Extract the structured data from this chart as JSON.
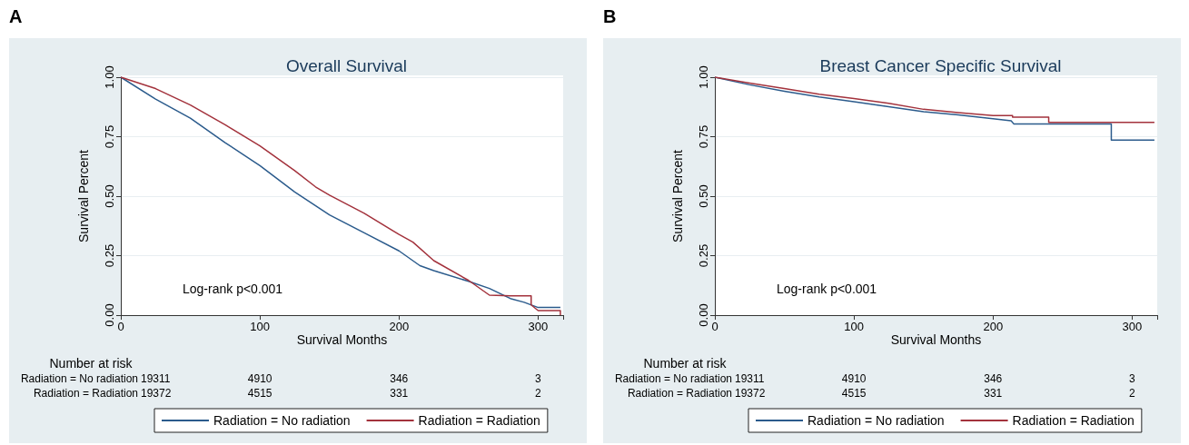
{
  "chart_data": [
    {
      "type": "line",
      "title": "Overall Survival",
      "xlabel": "Survival Months",
      "ylabel": "Survival Percent",
      "annotations": [
        "A",
        "Log-rank p<0.001",
        "Number at risk",
        "Radiation = No radiation",
        "19311",
        "4910",
        "346",
        "3",
        "Radiation = Radiation",
        "19372",
        "4515",
        "331",
        "2"
      ],
      "series": [
        {
          "name": "Radiation = No radiation",
          "color": "#2b5b8c",
          "x": [
            0,
            25,
            50,
            75,
            100,
            125,
            150,
            175,
            200,
            215,
            225,
            250,
            265,
            280,
            290,
            300,
            316
          ],
          "values": [
            1.0,
            0.908,
            0.828,
            0.725,
            0.628,
            0.518,
            0.421,
            0.346,
            0.27,
            0.208,
            0.187,
            0.142,
            0.112,
            0.07,
            0.054,
            0.032,
            0.032
          ]
        },
        {
          "name": "Radiation = Radiation",
          "color": "#a3323c",
          "x": [
            0,
            25,
            50,
            75,
            100,
            125,
            140,
            150,
            175,
            200,
            210,
            225,
            250,
            265,
            280,
            295,
            295,
            300,
            316,
            316
          ],
          "values": [
            1.0,
            0.952,
            0.883,
            0.8,
            0.711,
            0.607,
            0.539,
            0.504,
            0.428,
            0.339,
            0.307,
            0.229,
            0.146,
            0.084,
            0.081,
            0.081,
            0.043,
            0.019,
            0.019,
            0.0
          ]
        }
      ],
      "xlim": [
        0,
        318
      ],
      "xticks": [
        0,
        100,
        200,
        300
      ],
      "ylim": [
        0,
        1
      ],
      "yticks": [
        {
          "value": 0,
          "label": "0.00"
        },
        {
          "value": 0.25,
          "label": "0.25"
        },
        {
          "value": 0.5,
          "label": "0.50"
        },
        {
          "value": 0.75,
          "label": "0.75"
        },
        {
          "value": 1,
          "label": "1.00"
        }
      ],
      "grid": "y",
      "legend": "bottom"
    },
    {
      "type": "line",
      "title": "Breast Cancer Specific Survival",
      "xlabel": "Survival Months",
      "ylabel": "Survival Percent",
      "annotations": [
        "B",
        "Log-rank p<0.001",
        "Number at risk",
        "Radiation = No radiation",
        "19311",
        "4910",
        "346",
        "3",
        "Radiation = Radiation",
        "19372",
        "4515",
        "331",
        "2"
      ],
      "series": [
        {
          "name": "Radiation = No radiation",
          "color": "#2b5b8c",
          "x": [
            0,
            25,
            50,
            75,
            100,
            125,
            150,
            175,
            200,
            213,
            215,
            285,
            285,
            316
          ],
          "values": [
            1.0,
            0.968,
            0.941,
            0.917,
            0.897,
            0.876,
            0.855,
            0.842,
            0.825,
            0.817,
            0.803,
            0.803,
            0.736,
            0.736
          ]
        },
        {
          "name": "Radiation = Radiation",
          "color": "#a3323c",
          "x": [
            0,
            25,
            50,
            75,
            100,
            125,
            150,
            175,
            200,
            214,
            214,
            240,
            240,
            316
          ],
          "values": [
            1.0,
            0.975,
            0.952,
            0.928,
            0.91,
            0.89,
            0.865,
            0.851,
            0.839,
            0.839,
            0.832,
            0.832,
            0.81,
            0.81
          ]
        }
      ],
      "xlim": [
        0,
        318
      ],
      "xticks": [
        0,
        100,
        200,
        300
      ],
      "ylim": [
        0,
        1
      ],
      "yticks": [
        {
          "value": 0,
          "label": "0.00"
        },
        {
          "value": 0.25,
          "label": "0.25"
        },
        {
          "value": 0.5,
          "label": "0.50"
        },
        {
          "value": 0.75,
          "label": "0.75"
        },
        {
          "value": 1,
          "label": "1.00"
        }
      ],
      "grid": "y",
      "legend": "bottom"
    }
  ]
}
